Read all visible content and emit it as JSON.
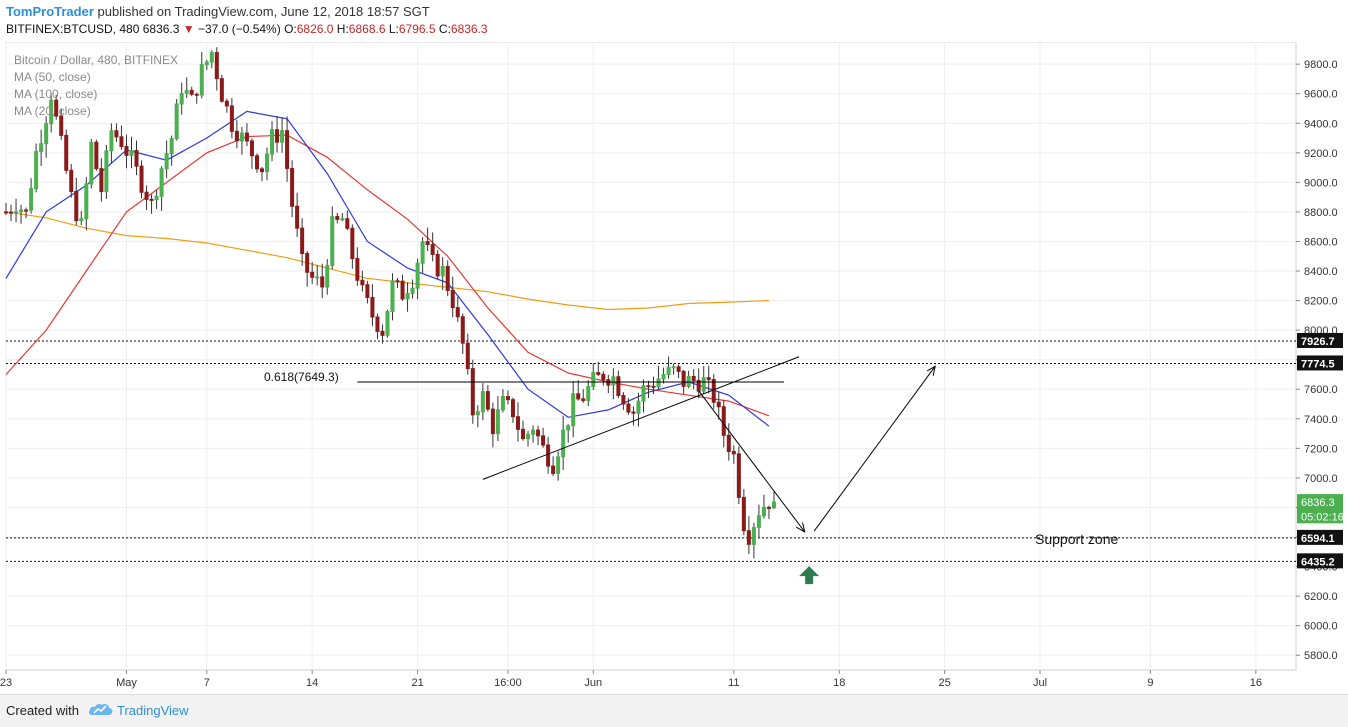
{
  "header": {
    "author": "TomProTrader",
    "published_text": "published on TradingView.com, June 12, 2018 18:57 SGT",
    "symbol": "BITFINEX:BTCUSD, 480",
    "last": "6836.3",
    "change_arrow": "▼",
    "change": "−37.0 (−0.54%)",
    "o_label": "O:",
    "o_val": "6826.0",
    "h_label": "H:",
    "h_val": "6868.6",
    "l_label": "L:",
    "l_val": "6796.5",
    "c_label": "C:",
    "c_val": "6836.3"
  },
  "legend": {
    "title": "Bitcoin / Dollar, 480, BITFINEX",
    "ma1": "MA (50, close)",
    "ma2": "MA (100, close)",
    "ma3": "MA (20, close)"
  },
  "annotations": {
    "fib": "0.618(7649.3)",
    "support": "Support zone"
  },
  "footer": {
    "created": "Created with",
    "brand": "TradingView"
  },
  "colors": {
    "up": "#4caf50",
    "down": "#8b1a1a",
    "ma_blue": "#2b39e0",
    "ma_red": "#e53935",
    "ma_orange": "#f39c12",
    "line": "#000000",
    "grid": "#eeeeee",
    "arrow": "#2e7d4f"
  },
  "chart_data": {
    "type": "candlestick",
    "y_axis": {
      "min": 5700,
      "max": 9950,
      "ticks": [
        "9800.0",
        "9600.0",
        "9400.0",
        "9200.0",
        "9000.0",
        "8800.0",
        "8600.0",
        "8400.0",
        "8200.0",
        "8000.0",
        "7800.0",
        "7600.0",
        "7400.0",
        "7200.0",
        "7000.0",
        "6800.0",
        "6600.0",
        "6400.0",
        "6200.0",
        "6000.0",
        "5800.0"
      ],
      "tick_values": [
        9800,
        9600,
        9400,
        9200,
        9000,
        8800,
        8600,
        8400,
        8200,
        8000,
        7800,
        7600,
        7400,
        7200,
        7000,
        6800,
        6600,
        6400,
        6200,
        6000,
        5800
      ]
    },
    "x_axis": {
      "labels": [
        "23",
        "May",
        "7",
        "14",
        "21",
        "16:00",
        "Jun",
        "11",
        "18",
        "25",
        "Jul",
        "9",
        "16"
      ],
      "label_index": [
        0,
        24,
        40,
        61,
        82,
        100,
        117,
        145,
        166,
        187,
        206,
        228,
        249
      ],
      "range": [
        0,
        257
      ]
    },
    "price_labels": [
      {
        "text": "7926.7",
        "value": 7926.7,
        "style": "dark"
      },
      {
        "text": "7774.5",
        "value": 7774.5,
        "style": "dark"
      },
      {
        "text": "6836.3",
        "value": 6836.3,
        "style": "green"
      },
      {
        "text": "05:02:16",
        "value": 6740,
        "style": "green-light"
      },
      {
        "text": "6594.1",
        "value": 6594.1,
        "style": "dark"
      },
      {
        "text": "6435.2",
        "value": 6435.2,
        "style": "dark"
      }
    ],
    "horizontal_levels": [
      7926.7,
      7774.5,
      6594.1,
      6435.2
    ],
    "fib_level": {
      "value": 7649.3,
      "from": 70,
      "to": 155
    },
    "trendline": {
      "x1": 95,
      "y1": 6990,
      "x2": 158,
      "y2": 7820
    },
    "arrows": [
      {
        "x1": 138,
        "y1": 7590,
        "x2": 159,
        "y2": 6640
      },
      {
        "x1": 161,
        "y1": 6640,
        "x2": 185,
        "y2": 7750
      }
    ],
    "up_marker": {
      "x": 160,
      "y": 6335
    },
    "anchors": [
      [
        0,
        8800
      ],
      [
        2,
        8860
      ],
      [
        4,
        8790
      ],
      [
        6,
        9200
      ],
      [
        8,
        9450
      ],
      [
        9,
        9600
      ],
      [
        11,
        9250
      ],
      [
        13,
        8900
      ],
      [
        15,
        8700
      ],
      [
        17,
        9250
      ],
      [
        19,
        8950
      ],
      [
        21,
        9350
      ],
      [
        23,
        9280
      ],
      [
        25,
        9150
      ],
      [
        27,
        9000
      ],
      [
        29,
        8850
      ],
      [
        31,
        9100
      ],
      [
        33,
        9300
      ],
      [
        35,
        9650
      ],
      [
        37,
        9550
      ],
      [
        39,
        9750
      ],
      [
        41,
        9880
      ],
      [
        43,
        9600
      ],
      [
        45,
        9400
      ],
      [
        47,
        9300
      ],
      [
        49,
        9200
      ],
      [
        51,
        9100
      ],
      [
        53,
        9300
      ],
      [
        55,
        9350
      ],
      [
        57,
        8850
      ],
      [
        59,
        8450
      ],
      [
        61,
        8350
      ],
      [
        63,
        8300
      ],
      [
        65,
        8700
      ],
      [
        67,
        8750
      ],
      [
        69,
        8500
      ],
      [
        71,
        8250
      ],
      [
        73,
        8100
      ],
      [
        75,
        8000
      ],
      [
        77,
        8300
      ],
      [
        79,
        8250
      ],
      [
        81,
        8350
      ],
      [
        83,
        8600
      ],
      [
        85,
        8450
      ],
      [
        87,
        8400
      ],
      [
        89,
        8200
      ],
      [
        91,
        7900
      ],
      [
        93,
        7450
      ],
      [
        95,
        7550
      ],
      [
        97,
        7350
      ],
      [
        99,
        7500
      ],
      [
        101,
        7450
      ],
      [
        103,
        7250
      ],
      [
        105,
        7350
      ],
      [
        107,
        7200
      ],
      [
        109,
        7100
      ],
      [
        111,
        7300
      ],
      [
        113,
        7500
      ],
      [
        115,
        7550
      ],
      [
        117,
        7650
      ],
      [
        119,
        7700
      ],
      [
        121,
        7680
      ],
      [
        123,
        7550
      ],
      [
        125,
        7450
      ],
      [
        127,
        7600
      ],
      [
        129,
        7650
      ],
      [
        131,
        7700
      ],
      [
        133,
        7720
      ],
      [
        135,
        7650
      ],
      [
        137,
        7660
      ],
      [
        139,
        7650
      ],
      [
        141,
        7550
      ],
      [
        143,
        7300
      ],
      [
        145,
        7150
      ],
      [
        147,
        6700
      ],
      [
        148,
        6620
      ],
      [
        150,
        6780
      ],
      [
        152,
        6850
      ],
      [
        153,
        6836
      ]
    ],
    "ma_blue": [
      [
        0,
        8350
      ],
      [
        8,
        8800
      ],
      [
        16,
        8980
      ],
      [
        24,
        9220
      ],
      [
        32,
        9150
      ],
      [
        40,
        9300
      ],
      [
        48,
        9480
      ],
      [
        56,
        9430
      ],
      [
        64,
        9060
      ],
      [
        72,
        8600
      ],
      [
        80,
        8420
      ],
      [
        88,
        8320
      ],
      [
        96,
        7970
      ],
      [
        104,
        7600
      ],
      [
        112,
        7410
      ],
      [
        120,
        7460
      ],
      [
        128,
        7580
      ],
      [
        136,
        7650
      ],
      [
        144,
        7560
      ],
      [
        152,
        7350
      ]
    ],
    "ma_red": [
      [
        0,
        7700
      ],
      [
        8,
        8000
      ],
      [
        16,
        8400
      ],
      [
        24,
        8800
      ],
      [
        32,
        9000
      ],
      [
        40,
        9200
      ],
      [
        48,
        9310
      ],
      [
        56,
        9320
      ],
      [
        64,
        9170
      ],
      [
        72,
        8950
      ],
      [
        80,
        8750
      ],
      [
        88,
        8500
      ],
      [
        96,
        8150
      ],
      [
        104,
        7850
      ],
      [
        112,
        7710
      ],
      [
        120,
        7650
      ],
      [
        128,
        7600
      ],
      [
        136,
        7560
      ],
      [
        144,
        7520
      ],
      [
        152,
        7420
      ]
    ],
    "ma_orange": [
      [
        0,
        8800
      ],
      [
        8,
        8760
      ],
      [
        16,
        8690
      ],
      [
        24,
        8640
      ],
      [
        32,
        8620
      ],
      [
        40,
        8590
      ],
      [
        48,
        8540
      ],
      [
        56,
        8490
      ],
      [
        64,
        8420
      ],
      [
        72,
        8350
      ],
      [
        80,
        8320
      ],
      [
        88,
        8290
      ],
      [
        96,
        8260
      ],
      [
        104,
        8210
      ],
      [
        112,
        8170
      ],
      [
        120,
        8140
      ],
      [
        128,
        8150
      ],
      [
        136,
        8180
      ],
      [
        144,
        8190
      ],
      [
        152,
        8200
      ]
    ]
  }
}
